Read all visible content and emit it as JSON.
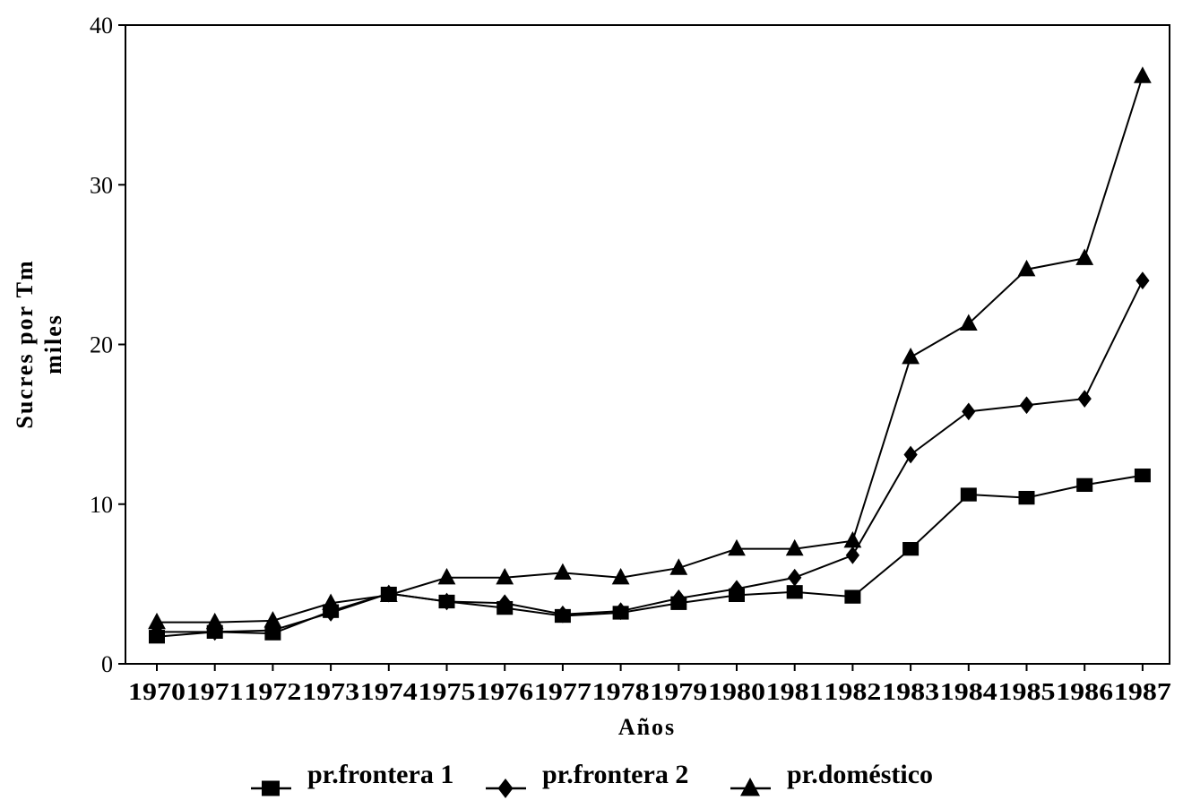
{
  "chart_data": {
    "type": "line",
    "title": "",
    "xlabel": "Años",
    "ylabel_lines": [
      "Sucres por Tm",
      "miles"
    ],
    "ylim": [
      0,
      40
    ],
    "yticks": [
      "0",
      "10",
      "20",
      "30",
      "40"
    ],
    "categories": [
      "1970",
      "1971",
      "1972",
      "1973",
      "1974",
      "1975",
      "1976",
      "1977",
      "1978",
      "1979",
      "1980",
      "1981",
      "1982",
      "1983",
      "1984",
      "1985",
      "1986",
      "1987"
    ],
    "grid": false,
    "legend_position": "bottom",
    "series": [
      {
        "name": "pr.frontera 1",
        "marker": "square",
        "values": [
          1.7,
          2.0,
          1.9,
          3.3,
          4.4,
          3.9,
          3.5,
          3.0,
          3.2,
          3.8,
          4.3,
          4.5,
          4.2,
          7.2,
          10.6,
          10.4,
          11.2,
          11.8
        ]
      },
      {
        "name": "pr.frontera 2",
        "marker": "diamond",
        "values": [
          2.0,
          2.0,
          2.1,
          3.2,
          4.4,
          3.9,
          3.8,
          3.1,
          3.3,
          4.1,
          4.7,
          5.4,
          6.8,
          13.1,
          15.8,
          16.2,
          16.6,
          24.0
        ]
      },
      {
        "name": "pr.doméstico",
        "marker": "triangle",
        "values": [
          2.6,
          2.6,
          2.7,
          3.8,
          4.3,
          5.4,
          5.4,
          5.7,
          5.4,
          6.0,
          7.2,
          7.2,
          7.7,
          19.2,
          21.3,
          24.7,
          25.4,
          36.8
        ]
      }
    ]
  }
}
